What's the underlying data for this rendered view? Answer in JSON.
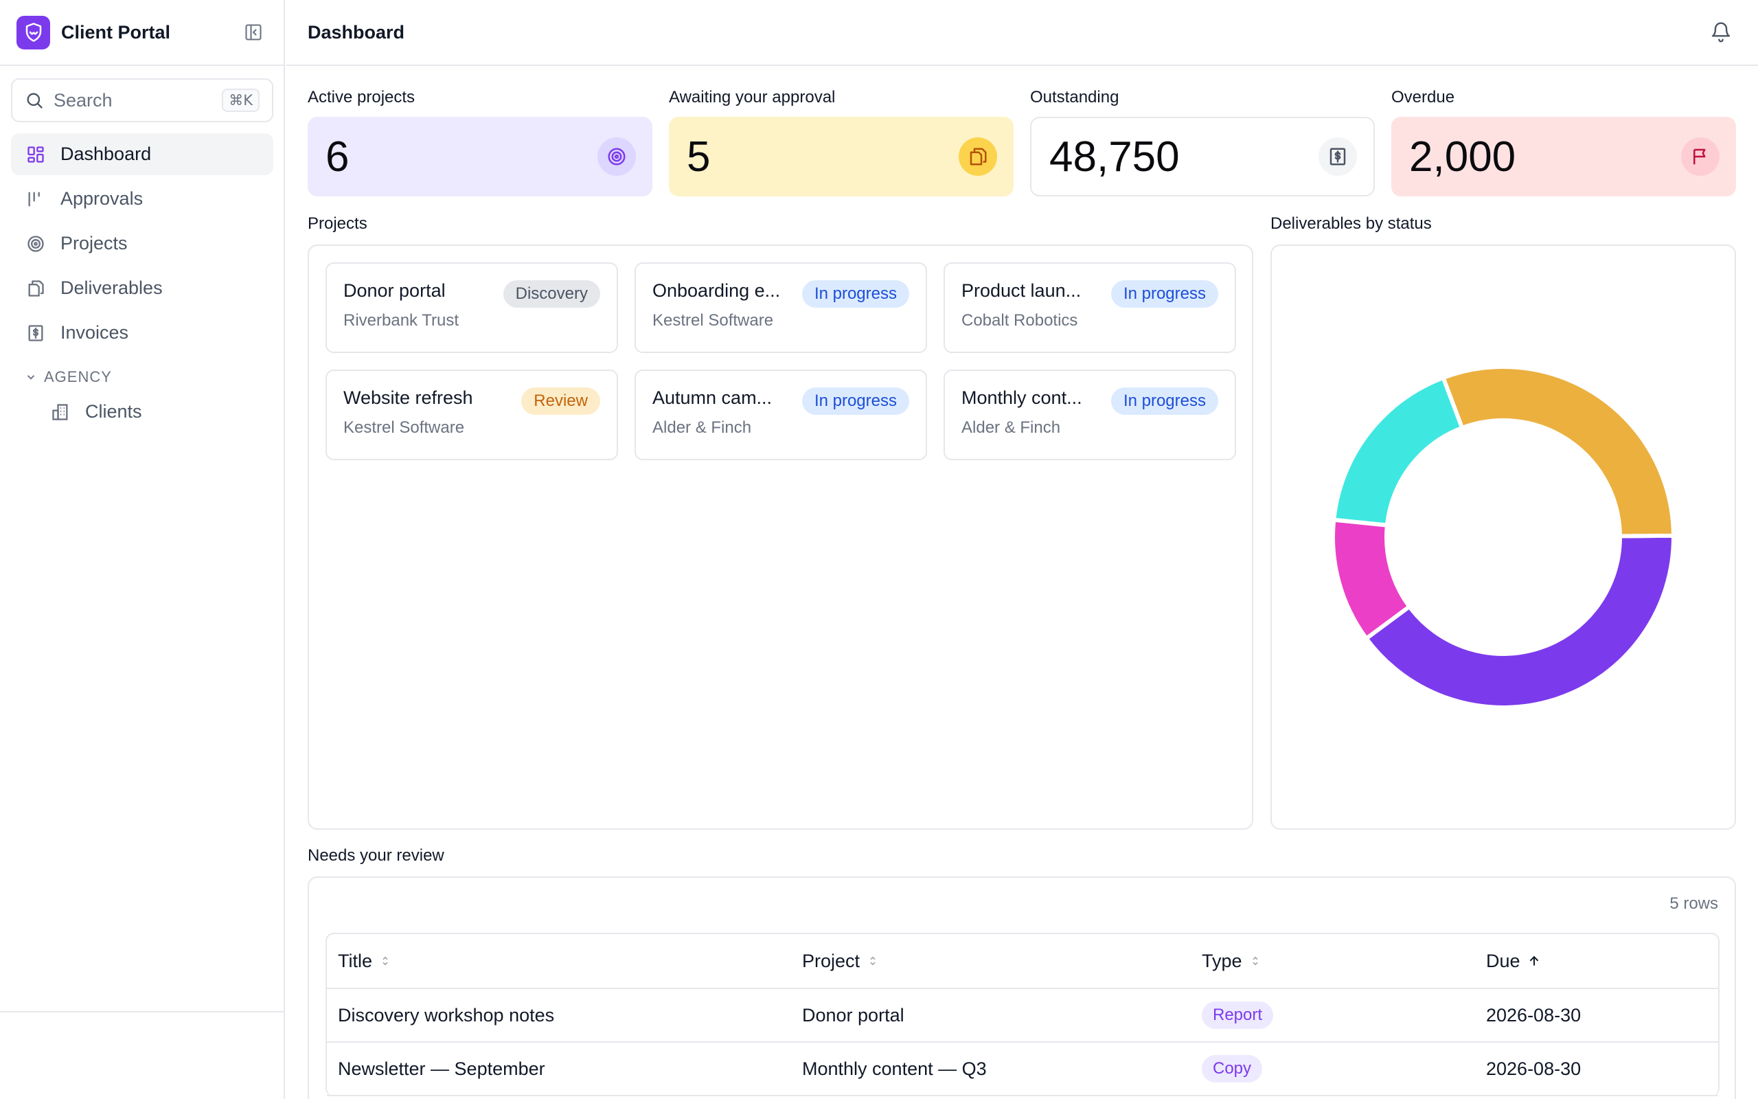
{
  "app": {
    "title": "Client Portal"
  },
  "search": {
    "placeholder": "Search",
    "shortcut": "⌘K"
  },
  "nav": {
    "items": [
      {
        "label": "Dashboard"
      },
      {
        "label": "Approvals"
      },
      {
        "label": "Projects"
      },
      {
        "label": "Deliverables"
      },
      {
        "label": "Invoices"
      }
    ],
    "section_label": "AGENCY",
    "sub_items": [
      {
        "label": "Clients"
      }
    ]
  },
  "header": {
    "title": "Dashboard"
  },
  "stats": [
    {
      "label": "Active projects",
      "value": "6",
      "bg": "#ede9fe",
      "icon_bg": "#ddd6fe",
      "icon_color": "#7c3aed",
      "icon": "target-icon"
    },
    {
      "label": "Awaiting your approval",
      "value": "5",
      "bg": "#fef3c7",
      "icon_bg": "#fcd34d",
      "icon_color": "#b45309",
      "icon": "copy-icon"
    },
    {
      "label": "Outstanding",
      "value": "48,750",
      "bg": "#ffffff",
      "icon_bg": "#f3f4f6",
      "icon_color": "#4b5563",
      "icon": "invoice-icon"
    },
    {
      "label": "Overdue",
      "value": "2,000",
      "bg": "#fee2e2",
      "icon_bg": "#fecdd3",
      "icon_color": "#be123c",
      "icon": "flag-icon"
    }
  ],
  "projects": {
    "title": "Projects",
    "items": [
      {
        "name": "Donor portal",
        "client": "Riverbank Trust",
        "status": "Discovery"
      },
      {
        "name": "Onboarding e...",
        "client": "Kestrel Software",
        "status": "In progress"
      },
      {
        "name": "Product laun...",
        "client": "Cobalt Robotics",
        "status": "In progress"
      },
      {
        "name": "Website refresh",
        "client": "Kestrel Software",
        "status": "Review"
      },
      {
        "name": "Autumn cam...",
        "client": "Alder & Finch",
        "status": "In progress"
      },
      {
        "name": "Monthly cont...",
        "client": "Alder & Finch",
        "status": "In progress"
      }
    ]
  },
  "chart_panel": {
    "title": "Deliverables by status"
  },
  "chart_data": {
    "type": "pie",
    "donut": true,
    "title": "Deliverables by status",
    "legend": "none",
    "slices": [
      {
        "value": 34,
        "color": "#7c3aed"
      },
      {
        "value": 10,
        "color": "#ec3fc7"
      },
      {
        "value": 15,
        "color": "#3ee8e0"
      },
      {
        "value": 26,
        "color": "#ecb03f"
      }
    ],
    "start_angle_deg": -0.5,
    "direction": "clockwise-from-right"
  },
  "review": {
    "title": "Needs your review",
    "rows_count": "5 rows",
    "columns": [
      "Title",
      "Project",
      "Type",
      "Due"
    ],
    "rows": [
      {
        "title": "Discovery workshop notes",
        "project": "Donor portal",
        "type": "Report",
        "due": "2026-08-30"
      },
      {
        "title": "Newsletter — September",
        "project": "Monthly content — Q3",
        "type": "Copy",
        "due": "2026-08-30"
      }
    ]
  }
}
